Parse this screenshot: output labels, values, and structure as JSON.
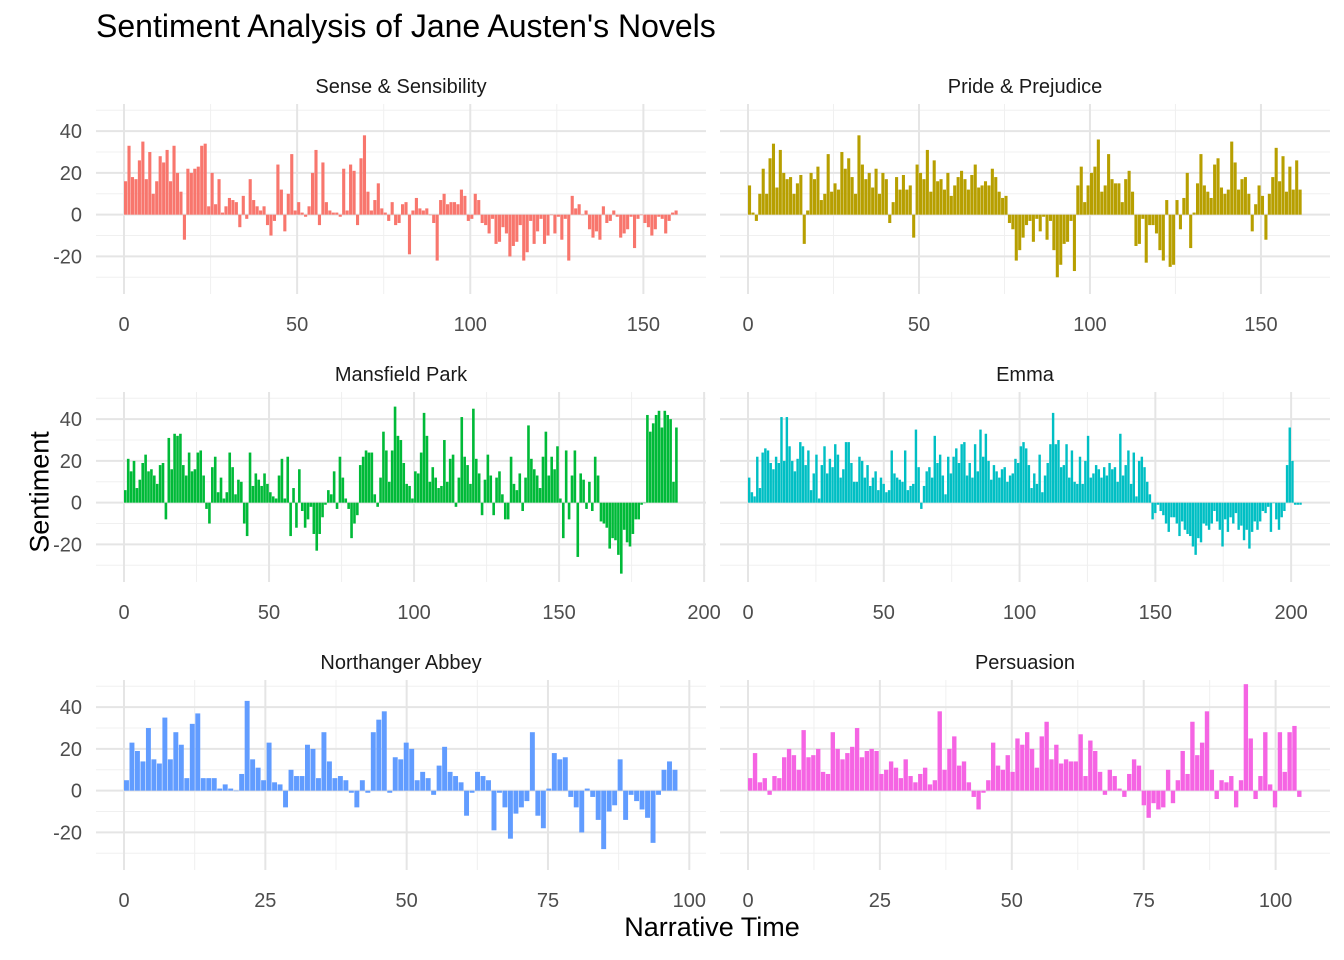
{
  "title": "Sentiment Analysis of Jane Austen's Novels",
  "xlabel": "Narrative Time",
  "ylabel": "Sentiment",
  "chart_data": {
    "type": "bar",
    "y_ticks": [
      -20,
      0,
      20,
      40
    ],
    "grid": true,
    "shared_y": true,
    "ylim": [
      -38,
      53
    ],
    "panels": [
      {
        "name": "Sense & Sensibility",
        "color": "#F8766D",
        "xlim": [
          0,
          160
        ],
        "x_ticks": [
          0,
          50,
          100,
          150
        ],
        "values": [
          16,
          33,
          18,
          17,
          26,
          35,
          17,
          30,
          10,
          16,
          28,
          25,
          31,
          16,
          33,
          20,
          11,
          -12,
          22,
          20,
          22,
          23,
          33,
          34,
          4,
          20,
          5,
          17,
          1,
          4,
          8,
          7,
          6,
          -6,
          9,
          -2,
          17,
          7,
          4,
          2,
          4,
          -5,
          -10,
          -3,
          24,
          12,
          -8,
          10,
          29,
          2,
          6,
          1,
          -1,
          4,
          20,
          31,
          -5,
          25,
          6,
          2,
          1,
          1,
          -1,
          22,
          2,
          24,
          21,
          -5,
          27,
          38,
          11,
          2,
          7,
          15,
          3,
          1,
          -3,
          6,
          -5,
          -4,
          5,
          6,
          -19,
          2,
          8,
          3,
          2,
          3,
          0,
          -4,
          -22,
          7,
          10,
          5,
          6,
          6,
          5,
          12,
          9,
          -3,
          -2,
          10,
          7,
          -4,
          -5,
          -9,
          -2,
          -14,
          -13,
          -6,
          -9,
          -20,
          -15,
          -13,
          -5,
          -22,
          -18,
          -3,
          -14,
          -8,
          -2,
          -14,
          -10,
          0,
          -9,
          -1,
          -12,
          -2,
          -22,
          9,
          3,
          5,
          0,
          2,
          -7,
          -11,
          -8,
          -12,
          4,
          -4,
          -3,
          2,
          -1,
          -11,
          -9,
          -7,
          -1,
          -16,
          -2,
          0,
          -4,
          -6,
          -10,
          -7,
          -1,
          -2,
          -9,
          -3,
          1,
          2
        ],
        "labels_note": ""
      },
      {
        "name": "Pride & Prejudice",
        "color": "#B79F00",
        "xlim": [
          0,
          162
        ],
        "x_ticks": [
          0,
          50,
          100,
          150
        ],
        "values": [
          14,
          1,
          -3,
          10,
          22,
          10,
          27,
          34,
          13,
          31,
          20,
          17,
          18,
          10,
          15,
          19,
          -14,
          2,
          20,
          17,
          23,
          7,
          10,
          29,
          11,
          15,
          12,
          30,
          22,
          27,
          18,
          10,
          38,
          24,
          17,
          20,
          13,
          22,
          10,
          20,
          17,
          -4,
          6,
          18,
          12,
          19,
          12,
          14,
          -11,
          24,
          20,
          17,
          31,
          11,
          26,
          16,
          17,
          12,
          20,
          9,
          14,
          18,
          21,
          17,
          12,
          19,
          24,
          13,
          14,
          16,
          14,
          22,
          18,
          11,
          8,
          9,
          -4,
          -7,
          -22,
          -17,
          -11,
          -5,
          -3,
          -13,
          -2,
          -8,
          -1,
          -12,
          -3,
          -17,
          -30,
          -24,
          -14,
          -13,
          -3,
          -27,
          14,
          23,
          6,
          14,
          20,
          23,
          36,
          11,
          14,
          29,
          17,
          15,
          15,
          6,
          17,
          21,
          11,
          -15,
          -14,
          -2,
          -23,
          -5,
          -5,
          -9,
          -17,
          -22,
          7,
          -25,
          -24,
          7,
          -7,
          8,
          20,
          -16,
          1,
          15,
          29,
          14,
          11,
          8,
          24,
          27,
          13,
          10,
          12,
          35,
          25,
          12,
          17,
          18,
          10,
          -8,
          5,
          14,
          9,
          -12,
          10,
          18,
          32,
          16,
          28,
          11,
          23,
          12,
          26,
          12
        ],
        "labels_note": ""
      },
      {
        "name": "Mansfield Park",
        "color": "#00BA38",
        "xlim": [
          0,
          191
        ],
        "x_ticks": [
          0,
          50,
          100,
          150,
          200
        ],
        "values": [
          6,
          21,
          15,
          20,
          7,
          11,
          19,
          23,
          15,
          16,
          13,
          9,
          18,
          19,
          -8,
          31,
          16,
          33,
          32,
          33,
          18,
          13,
          24,
          15,
          16,
          24,
          25,
          13,
          -3,
          -10,
          17,
          22,
          5,
          12,
          2,
          5,
          24,
          17,
          4,
          11,
          10,
          -10,
          -16,
          24,
          8,
          14,
          11,
          8,
          14,
          9,
          5,
          3,
          2,
          13,
          21,
          2,
          22,
          -16,
          7,
          -12,
          16,
          -4,
          -12,
          -8,
          -2,
          -15,
          -23,
          -15,
          -7,
          -1,
          6,
          4,
          15,
          -3,
          22,
          12,
          2,
          -3,
          -17,
          -10,
          -6,
          18,
          22,
          25,
          24,
          24,
          4,
          -2,
          12,
          34,
          25,
          10,
          25,
          46,
          32,
          30,
          19,
          9,
          8,
          2,
          15,
          14,
          24,
          43,
          32,
          10,
          17,
          12,
          7,
          8,
          30,
          10,
          21,
          23,
          -2,
          12,
          41,
          22,
          18,
          9,
          45,
          21,
          14,
          -6,
          11,
          23,
          13,
          -6,
          12,
          15,
          4,
          -8,
          -8,
          22,
          9,
          6,
          14,
          -4,
          12,
          37,
          21,
          16,
          13,
          7,
          22,
          34,
          13,
          22,
          16,
          27,
          2,
          -17,
          25,
          -8,
          13,
          25,
          -26,
          14,
          11,
          -3,
          10,
          -4,
          22,
          13,
          -9,
          -10,
          -12,
          -22,
          -17,
          -18,
          -25,
          -34,
          -13,
          -19,
          -21,
          -15,
          -8,
          -8,
          -1,
          0,
          42,
          34,
          38,
          42,
          44,
          36,
          44,
          42,
          40,
          10,
          36
        ],
        "labels_note": ""
      },
      {
        "name": "Emma",
        "color": "#00BFC4",
        "xlim": [
          0,
          204
        ],
        "x_ticks": [
          0,
          50,
          100,
          150,
          200
        ],
        "values": [
          12,
          5,
          3,
          22,
          7,
          24,
          26,
          25,
          19,
          16,
          22,
          19,
          41,
          20,
          41,
          27,
          20,
          15,
          21,
          29,
          27,
          18,
          25,
          6,
          14,
          23,
          2,
          18,
          27,
          14,
          21,
          17,
          28,
          23,
          12,
          16,
          29,
          29,
          19,
          10,
          10,
          22,
          20,
          12,
          18,
          8,
          12,
          15,
          6,
          12,
          9,
          5,
          6,
          25,
          14,
          12,
          11,
          10,
          25,
          6,
          8,
          9,
          35,
          17,
          -3,
          8,
          15,
          17,
          12,
          32,
          19,
          23,
          13,
          4,
          22,
          14,
          22,
          26,
          19,
          28,
          29,
          13,
          19,
          12,
          28,
          15,
          35,
          22,
          33,
          20,
          11,
          18,
          15,
          12,
          16,
          17,
          10,
          13,
          14,
          21,
          19,
          27,
          29,
          26,
          18,
          7,
          14,
          9,
          23,
          5,
          13,
          19,
          28,
          43,
          28,
          30,
          17,
          18,
          28,
          12,
          25,
          10,
          9,
          22,
          9,
          20,
          32,
          12,
          14,
          18,
          16,
          12,
          17,
          13,
          19,
          16,
          17,
          10,
          33,
          13,
          18,
          25,
          9,
          24,
          3,
          20,
          22,
          17,
          10,
          4,
          -8,
          -5,
          -1,
          -4,
          -6,
          -10,
          -14,
          -7,
          -7,
          -10,
          -16,
          -9,
          -13,
          -15,
          -16,
          -21,
          -25,
          -17,
          -19,
          -10,
          -11,
          -13,
          -10,
          -4,
          -9,
          -13,
          -21,
          -8,
          -14,
          -7,
          -10,
          -5,
          -13,
          -11,
          -18,
          -13,
          -22,
          -14,
          -9,
          -13,
          -9,
          -4,
          -5,
          -2,
          -14,
          0,
          -8,
          -13,
          -7,
          -4,
          18,
          36,
          20,
          -1,
          -1,
          -1
        ],
        "labels_note": ""
      },
      {
        "name": "Northanger Abbey",
        "color": "#619CFF",
        "xlim": [
          0,
          98
        ],
        "x_ticks": [
          0,
          25,
          50,
          75,
          100
        ],
        "values": [
          5,
          23,
          19,
          14,
          30,
          15,
          13,
          35,
          15,
          28,
          22,
          6,
          32,
          37,
          6,
          6,
          6,
          1,
          3,
          1,
          0,
          8,
          43,
          15,
          11,
          5,
          23,
          4,
          3,
          -8,
          10,
          7,
          7,
          22,
          20,
          6,
          28,
          14,
          6,
          7,
          5,
          -1,
          -8,
          5,
          -1,
          28,
          34,
          38,
          -1,
          16,
          15,
          23,
          20,
          5,
          9,
          6,
          -2,
          12,
          21,
          9,
          7,
          4,
          -12,
          -1,
          9,
          7,
          5,
          -19,
          -1,
          -8,
          -23,
          -11,
          -8,
          -5,
          28,
          -12,
          -18,
          1,
          18,
          15,
          16,
          -3,
          -8,
          -20,
          1,
          -3,
          -14,
          -28,
          -10,
          -7,
          15,
          -14,
          -2,
          -5,
          -9,
          -13,
          -25,
          -2,
          10,
          14,
          10
        ],
        "labels_note": ""
      },
      {
        "name": "Persuasion",
        "color": "#F564E3",
        "xlim": [
          0,
          105
        ],
        "x_ticks": [
          0,
          25,
          50,
          75,
          100
        ],
        "values": [
          6,
          18,
          4,
          6,
          -2,
          7,
          6,
          16,
          20,
          17,
          10,
          29,
          16,
          17,
          20,
          9,
          8,
          28,
          20,
          15,
          18,
          21,
          30,
          16,
          19,
          20,
          19,
          8,
          10,
          14,
          11,
          6,
          15,
          7,
          4,
          8,
          11,
          3,
          5,
          38,
          10,
          20,
          26,
          12,
          14,
          4,
          -3,
          -9,
          -1,
          5,
          23,
          12,
          10,
          17,
          9,
          25,
          22,
          28,
          20,
          11,
          26,
          33,
          15,
          22,
          13,
          15,
          14,
          14,
          27,
          7,
          24,
          19,
          9,
          -2,
          10,
          7,
          1,
          -3,
          8,
          15,
          12,
          -7,
          -13,
          -6,
          -9,
          -8,
          10,
          -6,
          5,
          19,
          8,
          33,
          17,
          23,
          38,
          10,
          -4,
          5,
          4,
          7,
          -8,
          5,
          51,
          25,
          -4,
          7,
          28,
          3,
          -8,
          28,
          9,
          28,
          31,
          -3
        ],
        "labels_note": ""
      }
    ]
  }
}
